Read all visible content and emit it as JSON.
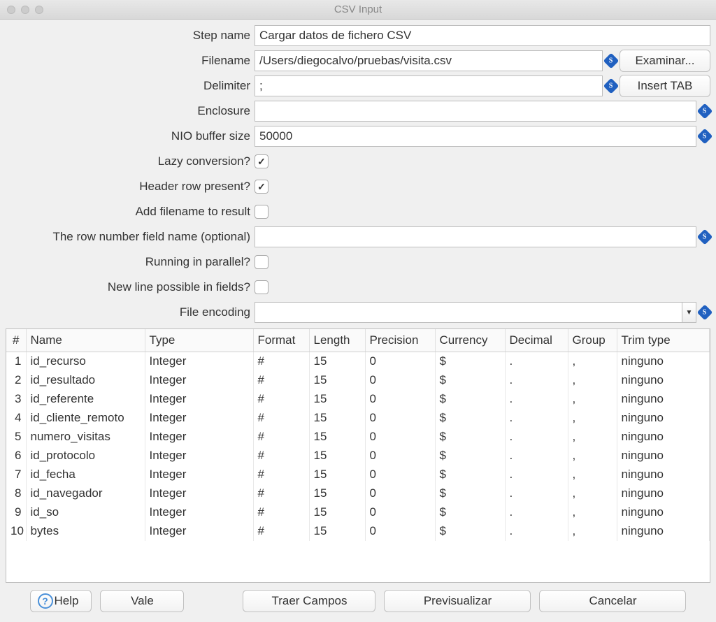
{
  "window": {
    "title": "CSV Input"
  },
  "labels": {
    "step_name": "Step name",
    "filename": "Filename",
    "delimiter": "Delimiter",
    "enclosure": "Enclosure",
    "nio_buffer": "NIO buffer size",
    "lazy_conversion": "Lazy conversion?",
    "header_row": "Header row present?",
    "add_filename": "Add filename to result",
    "row_number_field": "The row number field name (optional)",
    "running_parallel": "Running in parallel?",
    "newline_in_fields": "New line possible in fields?",
    "file_encoding": "File encoding"
  },
  "values": {
    "step_name": "Cargar datos de fichero CSV",
    "filename": "/Users/diegocalvo/pruebas/visita.csv",
    "delimiter": ";",
    "enclosure": "",
    "nio_buffer": "50000",
    "lazy_conversion": true,
    "header_row": true,
    "add_filename": false,
    "row_number_field": "",
    "running_parallel": false,
    "newline_in_fields": false,
    "file_encoding": ""
  },
  "buttons": {
    "browse": "Examinar...",
    "insert_tab": "Insert TAB",
    "help": "Help",
    "ok": "Vale",
    "get_fields": "Traer Campos",
    "preview": "Previsualizar",
    "cancel": "Cancelar"
  },
  "table": {
    "headers": {
      "num": "#",
      "name": "Name",
      "type": "Type",
      "format": "Format",
      "length": "Length",
      "precision": "Precision",
      "currency": "Currency",
      "decimal": "Decimal",
      "group": "Group",
      "trim": "Trim type"
    },
    "rows": [
      {
        "num": "1",
        "name": "id_recurso",
        "type": "Integer",
        "format": "#",
        "length": "15",
        "precision": "0",
        "currency": "$",
        "decimal": ".",
        "group": ",",
        "trim": "ninguno"
      },
      {
        "num": "2",
        "name": "id_resultado",
        "type": "Integer",
        "format": "#",
        "length": "15",
        "precision": "0",
        "currency": "$",
        "decimal": ".",
        "group": ",",
        "trim": "ninguno"
      },
      {
        "num": "3",
        "name": "id_referente",
        "type": "Integer",
        "format": "#",
        "length": "15",
        "precision": "0",
        "currency": "$",
        "decimal": ".",
        "group": ",",
        "trim": "ninguno"
      },
      {
        "num": "4",
        "name": "id_cliente_remoto",
        "type": "Integer",
        "format": "#",
        "length": "15",
        "precision": "0",
        "currency": "$",
        "decimal": ".",
        "group": ",",
        "trim": "ninguno"
      },
      {
        "num": "5",
        "name": "numero_visitas",
        "type": "Integer",
        "format": "#",
        "length": "15",
        "precision": "0",
        "currency": "$",
        "decimal": ".",
        "group": ",",
        "trim": "ninguno"
      },
      {
        "num": "6",
        "name": "id_protocolo",
        "type": "Integer",
        "format": "#",
        "length": "15",
        "precision": "0",
        "currency": "$",
        "decimal": ".",
        "group": ",",
        "trim": "ninguno"
      },
      {
        "num": "7",
        "name": "id_fecha",
        "type": "Integer",
        "format": "#",
        "length": "15",
        "precision": "0",
        "currency": "$",
        "decimal": ".",
        "group": ",",
        "trim": "ninguno"
      },
      {
        "num": "8",
        "name": "id_navegador",
        "type": "Integer",
        "format": "#",
        "length": "15",
        "precision": "0",
        "currency": "$",
        "decimal": ".",
        "group": ",",
        "trim": "ninguno"
      },
      {
        "num": "9",
        "name": "id_so",
        "type": "Integer",
        "format": "#",
        "length": "15",
        "precision": "0",
        "currency": "$",
        "decimal": ".",
        "group": ",",
        "trim": "ninguno"
      },
      {
        "num": "10",
        "name": "bytes",
        "type": "Integer",
        "format": "#",
        "length": "15",
        "precision": "0",
        "currency": "$",
        "decimal": ".",
        "group": ",",
        "trim": "ninguno"
      }
    ]
  },
  "style": {
    "window_bg": "#f0f0f0",
    "input_border": "#bdbdbd",
    "accent_diamond": "#2060c0",
    "help_icon_color": "#4a90d9"
  }
}
